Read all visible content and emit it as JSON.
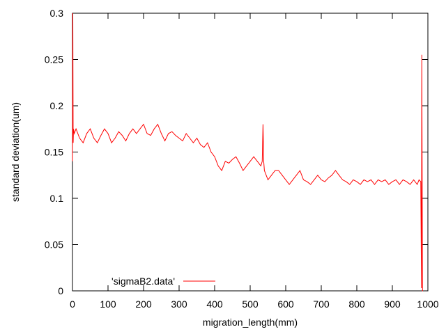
{
  "chart_data": {
    "type": "line",
    "title": "",
    "xlabel": "migration_length(mm)",
    "ylabel": "standard deviation(um)",
    "xlim": [
      0,
      1000
    ],
    "ylim": [
      0,
      0.3
    ],
    "xticks": [
      0,
      100,
      200,
      300,
      400,
      500,
      600,
      700,
      800,
      900,
      1000
    ],
    "yticks": [
      0,
      0.05,
      0.1,
      0.15,
      0.2,
      0.25,
      0.3
    ],
    "xtick_labels": [
      "0",
      "100",
      "200",
      "300",
      "400",
      "500",
      "600",
      "700",
      "800",
      "900",
      "1000"
    ],
    "ytick_labels": [
      "0",
      "0.05",
      "0.1",
      "0.15",
      "0.2",
      "0.25",
      "0.3"
    ],
    "grid": false,
    "legend_position": "bottom-left",
    "series": [
      {
        "name": "'sigmaB2.data'",
        "color": "#ff0000",
        "x": [
          0,
          1,
          2,
          3,
          5,
          10,
          20,
          30,
          40,
          50,
          60,
          70,
          80,
          90,
          100,
          110,
          120,
          130,
          140,
          150,
          160,
          170,
          180,
          190,
          200,
          210,
          220,
          230,
          240,
          250,
          260,
          270,
          280,
          290,
          300,
          310,
          320,
          330,
          340,
          350,
          360,
          370,
          380,
          390,
          400,
          410,
          420,
          430,
          440,
          450,
          460,
          470,
          480,
          490,
          500,
          510,
          520,
          530,
          534,
          536,
          538,
          540,
          550,
          560,
          570,
          580,
          590,
          600,
          610,
          620,
          630,
          640,
          650,
          660,
          670,
          680,
          690,
          700,
          710,
          720,
          730,
          740,
          750,
          760,
          770,
          780,
          790,
          800,
          810,
          820,
          830,
          840,
          850,
          860,
          870,
          880,
          890,
          900,
          910,
          920,
          930,
          940,
          950,
          960,
          970,
          975,
          980,
          982,
          983,
          984,
          985,
          986
        ],
        "y": [
          0.14,
          0.3,
          0.16,
          0.175,
          0.17,
          0.175,
          0.165,
          0.16,
          0.17,
          0.175,
          0.165,
          0.16,
          0.168,
          0.175,
          0.17,
          0.16,
          0.165,
          0.172,
          0.168,
          0.162,
          0.17,
          0.175,
          0.17,
          0.175,
          0.18,
          0.17,
          0.168,
          0.175,
          0.18,
          0.17,
          0.162,
          0.17,
          0.172,
          0.168,
          0.165,
          0.162,
          0.17,
          0.165,
          0.16,
          0.165,
          0.158,
          0.155,
          0.16,
          0.15,
          0.145,
          0.135,
          0.13,
          0.14,
          0.138,
          0.142,
          0.145,
          0.138,
          0.13,
          0.135,
          0.14,
          0.145,
          0.14,
          0.135,
          0.14,
          0.18,
          0.14,
          0.13,
          0.12,
          0.125,
          0.13,
          0.13,
          0.125,
          0.12,
          0.115,
          0.12,
          0.125,
          0.13,
          0.12,
          0.118,
          0.115,
          0.12,
          0.125,
          0.12,
          0.118,
          0.122,
          0.125,
          0.13,
          0.125,
          0.12,
          0.118,
          0.115,
          0.12,
          0.118,
          0.115,
          0.12,
          0.118,
          0.12,
          0.115,
          0.12,
          0.118,
          0.12,
          0.115,
          0.118,
          0.12,
          0.115,
          0.12,
          0.118,
          0.115,
          0.12,
          0.115,
          0.12,
          0.118,
          0.003,
          0.255,
          0.12,
          0.0,
          0.0
        ]
      }
    ]
  }
}
